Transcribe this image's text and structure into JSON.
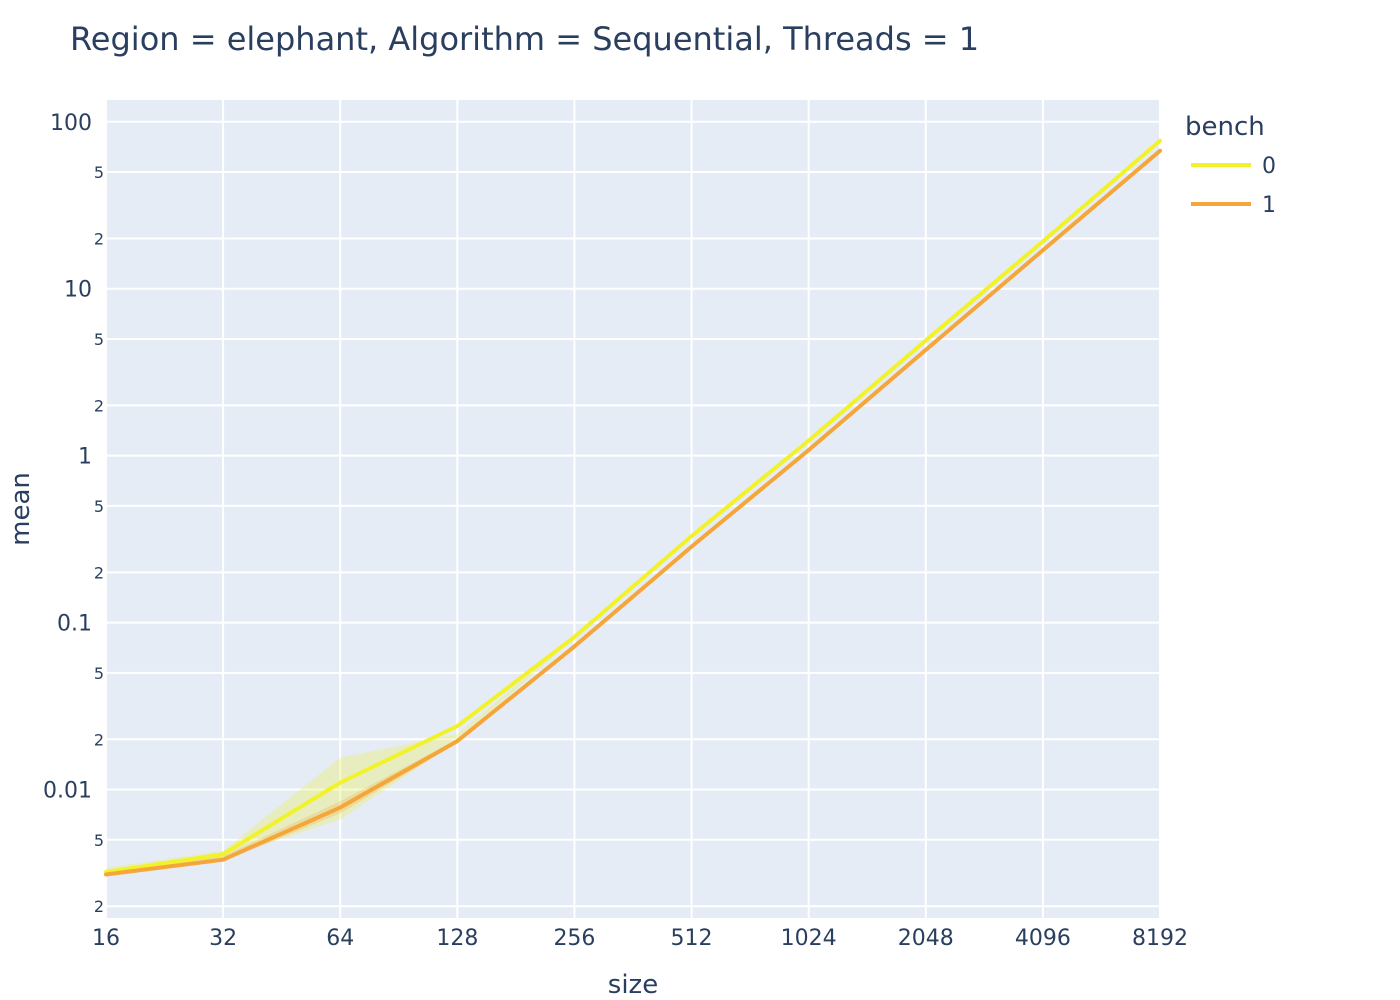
{
  "chart_data": {
    "type": "line",
    "title": "Region = elephant, Algorithm = Sequential, Threads = 1",
    "xlabel": "size",
    "ylabel": "mean",
    "x_scale": "log2",
    "y_scale": "log10",
    "x": [
      16,
      32,
      64,
      128,
      256,
      512,
      1024,
      2048,
      4096,
      8192
    ],
    "x_tick_labels": [
      "16",
      "32",
      "64",
      "128",
      "256",
      "512",
      "1024",
      "2048",
      "4096",
      "8192"
    ],
    "ylim": [
      0.0017,
      135
    ],
    "y_major_ticks": [
      {
        "value": 100,
        "label": "100"
      },
      {
        "value": 10,
        "label": "10"
      },
      {
        "value": 1,
        "label": "1"
      },
      {
        "value": 0.1,
        "label": "0.1"
      },
      {
        "value": 0.01,
        "label": "0.01"
      }
    ],
    "y_minor_ticks": [
      {
        "value": 50,
        "label": "5"
      },
      {
        "value": 20,
        "label": "2"
      },
      {
        "value": 5,
        "label": "5"
      },
      {
        "value": 2,
        "label": "2"
      },
      {
        "value": 0.5,
        "label": "5"
      },
      {
        "value": 0.2,
        "label": "2"
      },
      {
        "value": 0.05,
        "label": "5"
      },
      {
        "value": 0.02,
        "label": "2"
      },
      {
        "value": 0.005,
        "label": "5"
      },
      {
        "value": 0.002,
        "label": "2"
      }
    ],
    "legend": {
      "title": "bench",
      "position": "right"
    },
    "series": [
      {
        "name": "0",
        "color": "#f2f22a",
        "band_color": "rgba(235,240,60,0.3)",
        "values": [
          0.0032,
          0.0041,
          0.011,
          0.024,
          0.082,
          0.33,
          1.23,
          4.9,
          19.2,
          77
        ],
        "upper": [
          0.0034,
          0.0043,
          0.0155,
          0.0215,
          0.083,
          0.335,
          1.25,
          4.95,
          19.4,
          78
        ],
        "lower": [
          0.0031,
          0.0039,
          0.0066,
          0.0195,
          0.081,
          0.325,
          1.21,
          4.85,
          19.0,
          76
        ]
      },
      {
        "name": "1",
        "color": "#f5a63a",
        "band_color": "rgba(245,166,58,0.25)",
        "values": [
          0.0031,
          0.0038,
          0.0078,
          0.0195,
          0.072,
          0.285,
          1.08,
          4.3,
          17.0,
          67
        ],
        "upper": [
          0.0033,
          0.004,
          0.0085,
          0.02,
          0.073,
          0.29,
          1.09,
          4.35,
          17.2,
          68
        ],
        "lower": [
          0.003,
          0.0037,
          0.0072,
          0.019,
          0.071,
          0.28,
          1.07,
          4.25,
          16.8,
          66
        ]
      }
    ]
  }
}
